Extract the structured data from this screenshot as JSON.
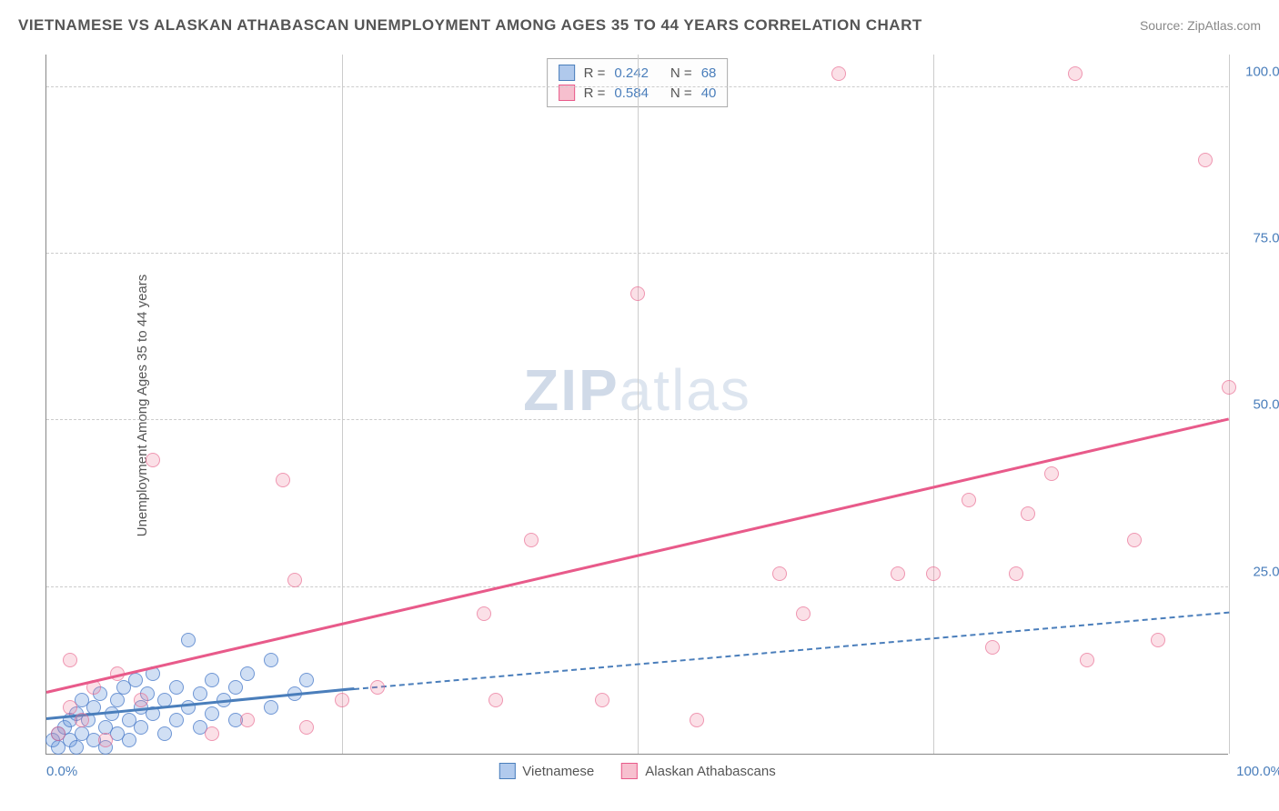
{
  "title": "VIETNAMESE VS ALASKAN ATHABASCAN UNEMPLOYMENT AMONG AGES 35 TO 44 YEARS CORRELATION CHART",
  "source": "Source: ZipAtlas.com",
  "ylabel": "Unemployment Among Ages 35 to 44 years",
  "watermark_bold": "ZIP",
  "watermark_rest": "atlas",
  "chart": {
    "type": "scatter",
    "xlim": [
      0,
      100
    ],
    "ylim": [
      0,
      105
    ],
    "yticks": [
      25,
      50,
      75,
      100
    ],
    "ytick_labels": [
      "25.0%",
      "50.0%",
      "75.0%",
      "100.0%"
    ],
    "xticks_grid": [
      25,
      50,
      75,
      100
    ],
    "xtick_labels": {
      "left": "0.0%",
      "right": "100.0%"
    },
    "background_color": "#ffffff",
    "grid_color": "#cccccc",
    "axis_color": "#888888"
  },
  "series": [
    {
      "name": "Vietnamese",
      "color_fill": "rgba(100,150,220,0.3)",
      "color_stroke": "#4a7ebb",
      "marker_size": 16,
      "points": [
        [
          0.5,
          2
        ],
        [
          1,
          1
        ],
        [
          1,
          3
        ],
        [
          1.5,
          4
        ],
        [
          2,
          2
        ],
        [
          2,
          5
        ],
        [
          2.5,
          1
        ],
        [
          2.5,
          6
        ],
        [
          3,
          3
        ],
        [
          3,
          8
        ],
        [
          3.5,
          5
        ],
        [
          4,
          2
        ],
        [
          4,
          7
        ],
        [
          4.5,
          9
        ],
        [
          5,
          4
        ],
        [
          5,
          1
        ],
        [
          5.5,
          6
        ],
        [
          6,
          8
        ],
        [
          6,
          3
        ],
        [
          6.5,
          10
        ],
        [
          7,
          5
        ],
        [
          7,
          2
        ],
        [
          7.5,
          11
        ],
        [
          8,
          7
        ],
        [
          8,
          4
        ],
        [
          8.5,
          9
        ],
        [
          9,
          6
        ],
        [
          9,
          12
        ],
        [
          10,
          8
        ],
        [
          10,
          3
        ],
        [
          11,
          10
        ],
        [
          11,
          5
        ],
        [
          12,
          7
        ],
        [
          12,
          17
        ],
        [
          13,
          9
        ],
        [
          13,
          4
        ],
        [
          14,
          11
        ],
        [
          14,
          6
        ],
        [
          15,
          8
        ],
        [
          16,
          10
        ],
        [
          16,
          5
        ],
        [
          17,
          12
        ],
        [
          19,
          7
        ],
        [
          19,
          14
        ],
        [
          21,
          9
        ],
        [
          22,
          11
        ]
      ],
      "trend": {
        "x1": 0,
        "y1": 5,
        "x2": 26,
        "y2": 9.5,
        "style": "solid"
      },
      "trend_ext": {
        "x1": 26,
        "y1": 9.5,
        "x2": 100,
        "y2": 21,
        "style": "dashed"
      }
    },
    {
      "name": "Alaskan Athabascans",
      "color_fill": "rgba(240,130,160,0.25)",
      "color_stroke": "#e85a8a",
      "marker_size": 16,
      "points": [
        [
          1,
          3
        ],
        [
          2,
          7
        ],
        [
          2,
          14
        ],
        [
          3,
          5
        ],
        [
          4,
          10
        ],
        [
          5,
          2
        ],
        [
          6,
          12
        ],
        [
          8,
          8
        ],
        [
          9,
          44
        ],
        [
          14,
          3
        ],
        [
          17,
          5
        ],
        [
          20,
          41
        ],
        [
          21,
          26
        ],
        [
          22,
          4
        ],
        [
          25,
          8
        ],
        [
          28,
          10
        ],
        [
          37,
          21
        ],
        [
          38,
          8
        ],
        [
          41,
          32
        ],
        [
          47,
          8
        ],
        [
          50,
          69
        ],
        [
          55,
          5
        ],
        [
          62,
          27
        ],
        [
          64,
          21
        ],
        [
          67,
          102
        ],
        [
          72,
          27
        ],
        [
          75,
          27
        ],
        [
          78,
          38
        ],
        [
          80,
          16
        ],
        [
          82,
          27
        ],
        [
          83,
          36
        ],
        [
          85,
          42
        ],
        [
          87,
          102
        ],
        [
          88,
          14
        ],
        [
          92,
          32
        ],
        [
          94,
          17
        ],
        [
          98,
          89
        ],
        [
          100,
          55
        ]
      ],
      "trend": {
        "x1": 0,
        "y1": 9,
        "x2": 100,
        "y2": 50,
        "style": "solid"
      }
    }
  ],
  "legend_top": [
    {
      "swatch": "blue",
      "r_label": "R =",
      "r_val": "0.242",
      "n_label": "N =",
      "n_val": "68"
    },
    {
      "swatch": "pink",
      "r_label": "R =",
      "r_val": "0.584",
      "n_label": "N =",
      "n_val": "40"
    }
  ],
  "legend_bottom": [
    {
      "swatch": "blue",
      "label": "Vietnamese"
    },
    {
      "swatch": "pink",
      "label": "Alaskan Athabascans"
    }
  ]
}
